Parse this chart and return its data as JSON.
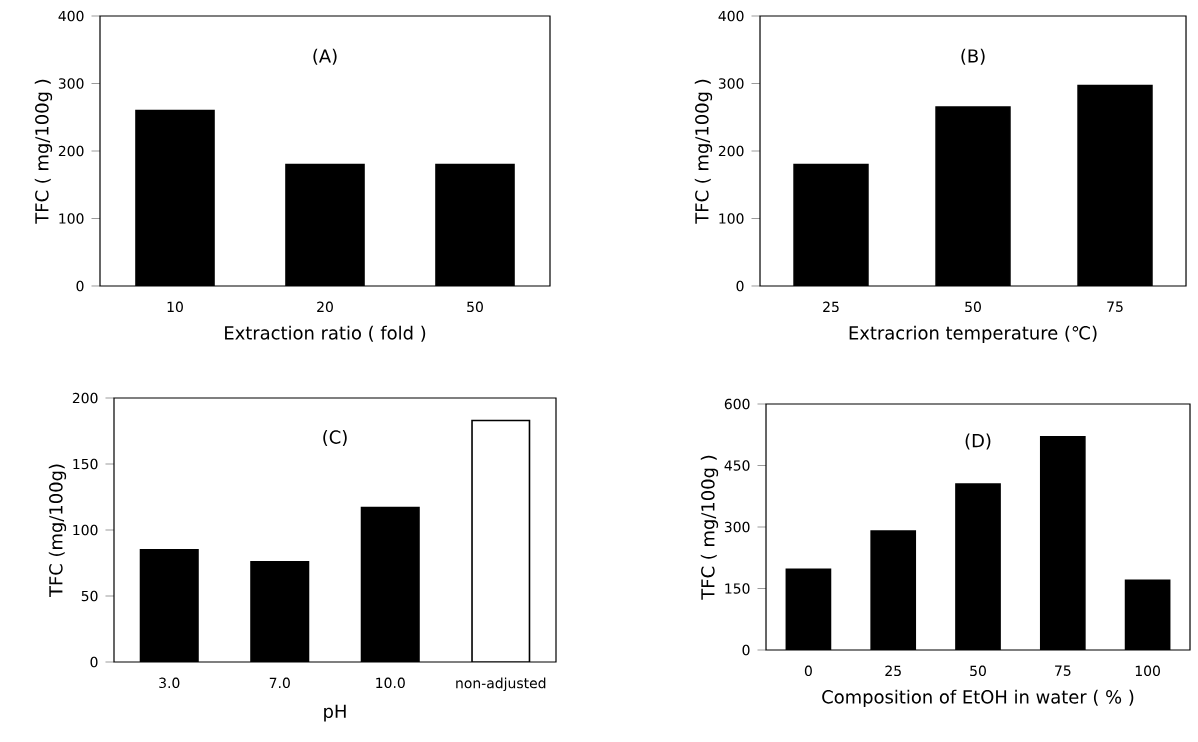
{
  "chart_data": [
    {
      "type": "bar",
      "title": "(A)",
      "xlabel": "Extraction ratio ( fold )",
      "ylabel": "TFC ( mg/100g )",
      "categories": [
        "10",
        "20",
        "50"
      ],
      "values": [
        260,
        180,
        180
      ],
      "color": "#000000",
      "ylim": [
        0,
        400
      ],
      "yticks": [
        0,
        100,
        200,
        300,
        400
      ]
    },
    {
      "type": "bar",
      "title": "(B)",
      "xlabel": "Extracrion temperature (℃)",
      "ylabel": "TFC ( mg/100g )",
      "categories": [
        "25",
        "50",
        "75"
      ],
      "values": [
        180,
        265,
        297
      ],
      "color": "#000000",
      "ylim": [
        0,
        400
      ],
      "yticks": [
        0,
        100,
        200,
        300,
        400
      ]
    },
    {
      "type": "bar",
      "title": "(C)",
      "xlabel": "pH",
      "ylabel": "TFC (mg/100g)",
      "categories": [
        "3.0",
        "7.0",
        "10.0",
        "non-adjusted"
      ],
      "values": [
        85,
        76,
        117,
        183
      ],
      "colors": [
        "#000000",
        "#000000",
        "#000000",
        "#ffffff"
      ],
      "ylim": [
        0,
        200
      ],
      "yticks": [
        0,
        50,
        100,
        150,
        200
      ]
    },
    {
      "type": "bar",
      "title": "(D)",
      "xlabel": "Composition of EtOH in water ( % )",
      "ylabel": "TFC ( mg/100g )",
      "categories": [
        "0",
        "25",
        "50",
        "75",
        "100"
      ],
      "values": [
        197,
        290,
        405,
        520,
        170
      ],
      "color": "#000000",
      "ylim": [
        0,
        600
      ],
      "yticks": [
        0,
        150,
        300,
        450,
        600
      ]
    }
  ]
}
